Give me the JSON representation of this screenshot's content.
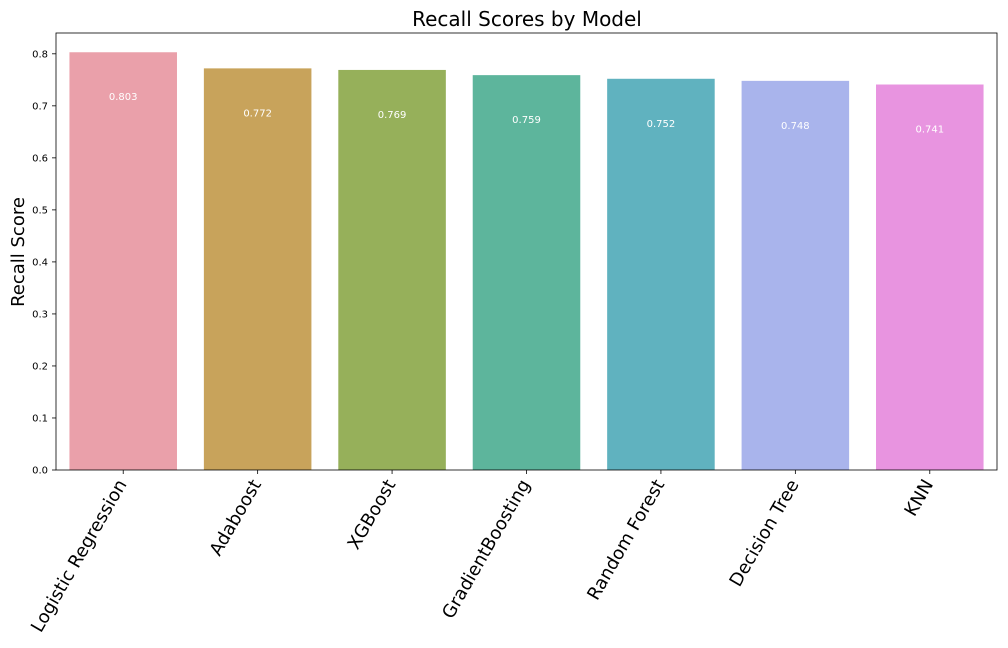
{
  "chart_data": {
    "type": "bar",
    "title": "Recall Scores by Model",
    "xlabel": "",
    "ylabel": "Recall Score",
    "categories": [
      "Logistic Regression",
      "Adaboost",
      "XGBoost",
      "GradientBoosting",
      "Random Forest",
      "Decision Tree",
      "KNN"
    ],
    "values": [
      0.803,
      0.772,
      0.769,
      0.759,
      0.752,
      0.748,
      0.741
    ],
    "value_labels": [
      "0.803",
      "0.772",
      "0.769",
      "0.759",
      "0.752",
      "0.748",
      "0.741"
    ],
    "colors": [
      "#eaa0aa",
      "#c8a35b",
      "#96b05a",
      "#5db59c",
      "#60b2bf",
      "#a9b4ec",
      "#e894e0"
    ],
    "ylim": [
      0,
      0.84
    ],
    "yticks": [
      0.0,
      0.1,
      0.2,
      0.3,
      0.4,
      0.5,
      0.6,
      0.7,
      0.8
    ],
    "ytick_labels": [
      "0.0",
      "0.1",
      "0.2",
      "0.3",
      "0.4",
      "0.5",
      "0.6",
      "0.7",
      "0.8"
    ],
    "grid": false,
    "legend": "none",
    "xtick_rotation_deg": 60
  }
}
